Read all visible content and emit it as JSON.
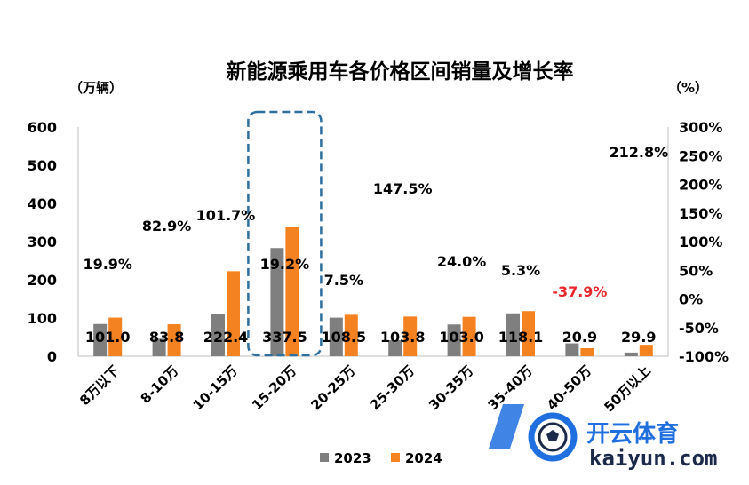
{
  "chart_data": {
    "type": "bar",
    "title": "新能源乘用车各价格区间销量及增长率",
    "y_left_unit": "（万辆）",
    "y_right_unit": "（%）",
    "ylim": [
      0,
      600
    ],
    "y_ticks": [
      "0",
      "100",
      "200",
      "300",
      "400",
      "500",
      "600"
    ],
    "y2lim": [
      -100,
      300
    ],
    "y2_ticks": [
      "-100%",
      "-50%",
      "0%",
      "50%",
      "100%",
      "150%",
      "200%",
      "250%",
      "300%"
    ],
    "categories": [
      "8万以下",
      "8-10万",
      "10-15万",
      "15-20万",
      "20-25万",
      "25-30万",
      "30-35万",
      "35-40万",
      "40-50万",
      "50万以上"
    ],
    "series": [
      {
        "name": "2023",
        "color": "#7f7f7f",
        "values": [
          84.3,
          45.8,
          110.3,
          283.2,
          100.9,
          41.9,
          83.1,
          112.2,
          33.6,
          9.6
        ]
      },
      {
        "name": "2024",
        "color": "#f58220",
        "values": [
          101.0,
          83.8,
          222.4,
          337.5,
          108.5,
          103.8,
          103.0,
          118.1,
          20.9,
          29.9
        ]
      }
    ],
    "value_labels": [
      "101.0",
      "83.8",
      "222.4",
      "337.5",
      "108.5",
      "103.8",
      "103.0",
      "118.1",
      "20.9",
      "29.9"
    ],
    "growth_labels": [
      "19.9%",
      "82.9%",
      "101.7%",
      "19.2%",
      "7.5%",
      "147.5%",
      "24.0%",
      "5.3%",
      "-37.9%",
      "212.8%"
    ],
    "negative_color": "#e8262c",
    "highlight_category": "15-20万",
    "highlight_color": "#2e6f9e",
    "grid": false,
    "legend_position": "bottom-center"
  },
  "watermark": {
    "text": "开云体育",
    "sub": "kaiyun.com",
    "color": "#1f6fe0"
  }
}
